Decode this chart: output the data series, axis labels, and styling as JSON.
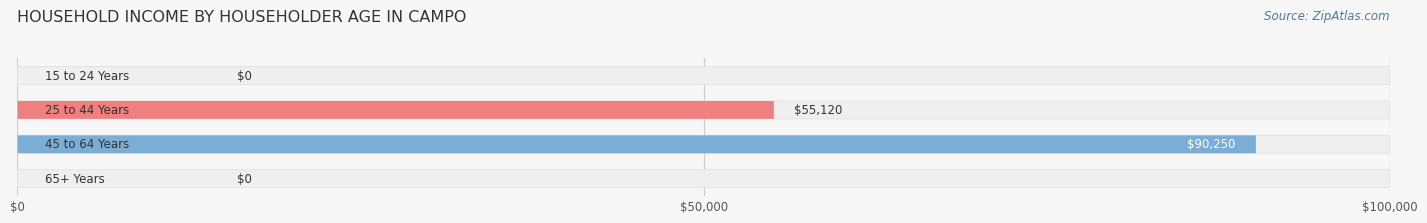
{
  "title": "HOUSEHOLD INCOME BY HOUSEHOLDER AGE IN CAMPO",
  "source": "Source: ZipAtlas.com",
  "categories": [
    "15 to 24 Years",
    "25 to 44 Years",
    "45 to 64 Years",
    "65+ Years"
  ],
  "values": [
    0,
    55120,
    90250,
    0
  ],
  "max_value": 100000,
  "bar_colors": [
    "#f5c9a0",
    "#f08080",
    "#7aaed6",
    "#c9aed6"
  ],
  "bar_bg_color": "#efefef",
  "tick_labels": [
    "$0",
    "$50,000",
    "$100,000"
  ],
  "tick_values": [
    0,
    50000,
    100000
  ],
  "value_labels": [
    "$0",
    "$55,120",
    "$90,250",
    "$0"
  ],
  "background_color": "#f7f7f7",
  "title_color": "#333333",
  "title_fontsize": 11.5,
  "label_fontsize": 8.5,
  "source_fontsize": 8.5,
  "source_color": "#557799",
  "bar_height": 0.52,
  "rounding": 0.26
}
